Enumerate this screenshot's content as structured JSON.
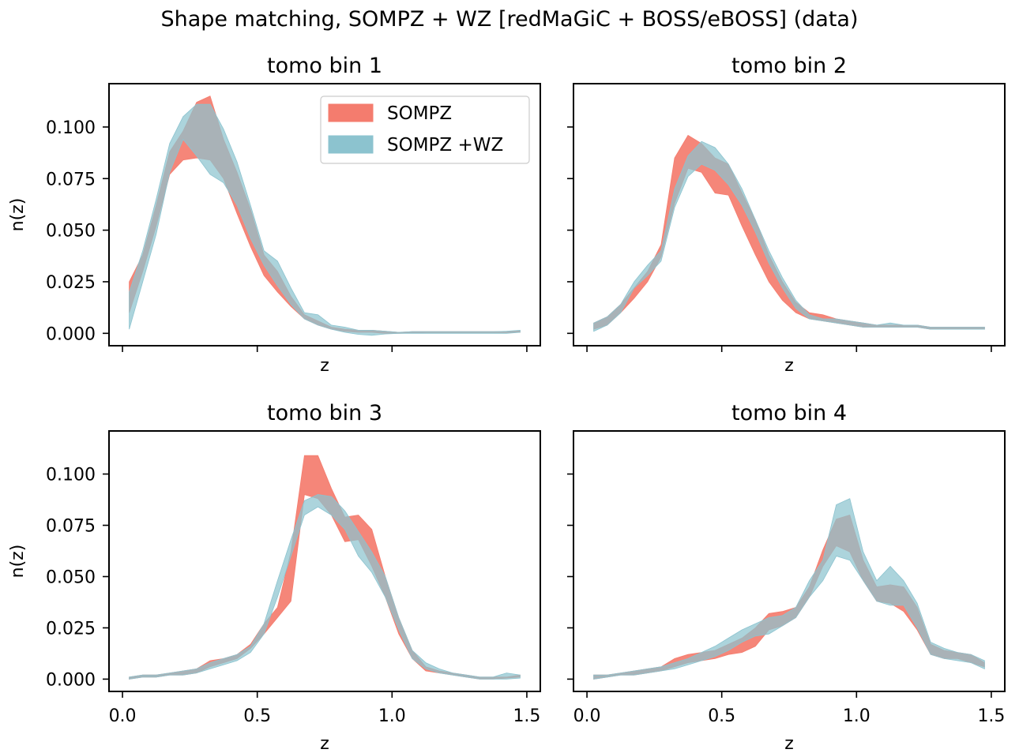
{
  "figure": {
    "suptitle": "Shape matching, SOMPZ + WZ [redMaGiC + BOSS/eBOSS] (data)"
  },
  "colors": {
    "sompz": "#f47c6e",
    "sompz_wz": "#8cc3cf",
    "overlap": "#8e989c"
  },
  "legend": {
    "placement": "top-right of tomo bin 1",
    "entries": [
      "SOMPZ",
      "SOMPZ +WZ"
    ]
  },
  "chart_data": [
    {
      "type": "area",
      "title": "tomo bin 1",
      "xlabel": "z",
      "ylabel": "n(z)",
      "xlim": [
        -0.05,
        1.55
      ],
      "ylim": [
        -0.006,
        0.121
      ],
      "xticks": [
        "0.0",
        "0.5",
        "1.0",
        "1.5"
      ],
      "yticks": [
        "0.000",
        "0.025",
        "0.050",
        "0.075",
        "0.100"
      ],
      "show_xtick_labels": false,
      "show_ytick_labels": true,
      "x": [
        0.025,
        0.075,
        0.125,
        0.175,
        0.225,
        0.275,
        0.325,
        0.375,
        0.425,
        0.475,
        0.525,
        0.575,
        0.625,
        0.675,
        0.725,
        0.775,
        0.825,
        0.875,
        0.925,
        0.975,
        1.025,
        1.075,
        1.125,
        1.175,
        1.225,
        1.275,
        1.325,
        1.375,
        1.425,
        1.475
      ],
      "series": [
        {
          "name": "SOMPZ",
          "lower": [
            0.01,
            0.03,
            0.052,
            0.077,
            0.084,
            0.085,
            0.084,
            0.075,
            0.058,
            0.042,
            0.028,
            0.02,
            0.013,
            0.007,
            0.004,
            0.002,
            0.001,
            0.0005,
            0.0005,
            0.0,
            0.0,
            0.0002,
            0.0003,
            0.0003,
            0.0003,
            0.0003,
            0.0003,
            0.0003,
            0.0003,
            0.0005
          ],
          "upper": [
            0.025,
            0.038,
            0.062,
            0.088,
            0.098,
            0.112,
            0.115,
            0.094,
            0.078,
            0.06,
            0.038,
            0.03,
            0.018,
            0.009,
            0.006,
            0.003,
            0.002,
            0.0015,
            0.0015,
            0.001,
            0.0005,
            0.0008,
            0.0008,
            0.0008,
            0.0008,
            0.0008,
            0.0008,
            0.0008,
            0.0008,
            0.0012
          ]
        },
        {
          "name": "SOMPZ +WZ",
          "lower": [
            0.002,
            0.025,
            0.048,
            0.078,
            0.094,
            0.086,
            0.077,
            0.073,
            0.062,
            0.046,
            0.033,
            0.023,
            0.014,
            0.007,
            0.004,
            0.002,
            0.0005,
            -0.0005,
            -0.001,
            -0.0003,
            0.0,
            0.0,
            0.0,
            0.0,
            0.0,
            0.0,
            0.0,
            0.0,
            0.0,
            0.0005
          ],
          "upper": [
            0.02,
            0.04,
            0.065,
            0.092,
            0.105,
            0.111,
            0.111,
            0.099,
            0.083,
            0.062,
            0.04,
            0.035,
            0.022,
            0.01,
            0.009,
            0.004,
            0.003,
            0.0015,
            0.0015,
            0.001,
            0.0005,
            0.0008,
            0.0008,
            0.0008,
            0.0008,
            0.0008,
            0.0008,
            0.0008,
            0.001,
            0.0015
          ]
        }
      ]
    },
    {
      "type": "area",
      "title": "tomo bin 2",
      "xlabel": "z",
      "ylabel": "",
      "xlim": [
        -0.05,
        1.55
      ],
      "ylim": [
        -0.006,
        0.121
      ],
      "xticks": [
        "0.0",
        "0.5",
        "1.0",
        "1.5"
      ],
      "yticks": [
        "0.000",
        "0.025",
        "0.050",
        "0.075",
        "0.100"
      ],
      "show_xtick_labels": false,
      "show_ytick_labels": false,
      "x": [
        0.025,
        0.075,
        0.125,
        0.175,
        0.225,
        0.275,
        0.325,
        0.375,
        0.425,
        0.475,
        0.525,
        0.575,
        0.625,
        0.675,
        0.725,
        0.775,
        0.825,
        0.875,
        0.925,
        0.975,
        1.025,
        1.075,
        1.125,
        1.175,
        1.225,
        1.275,
        1.325,
        1.375,
        1.425,
        1.475
      ],
      "series": [
        {
          "name": "SOMPZ",
          "lower": [
            0.002,
            0.004,
            0.01,
            0.017,
            0.025,
            0.037,
            0.063,
            0.08,
            0.078,
            0.068,
            0.067,
            0.052,
            0.038,
            0.025,
            0.016,
            0.01,
            0.007,
            0.006,
            0.005,
            0.004,
            0.003,
            0.003,
            0.003,
            0.003,
            0.003,
            0.002,
            0.002,
            0.002,
            0.002,
            0.002
          ],
          "upper": [
            0.005,
            0.008,
            0.014,
            0.022,
            0.03,
            0.043,
            0.085,
            0.096,
            0.092,
            0.085,
            0.082,
            0.068,
            0.055,
            0.038,
            0.025,
            0.015,
            0.01,
            0.009,
            0.007,
            0.006,
            0.005,
            0.004,
            0.004,
            0.004,
            0.004,
            0.003,
            0.003,
            0.003,
            0.003,
            0.003
          ]
        },
        {
          "name": "SOMPZ +WZ",
          "lower": [
            0.001,
            0.004,
            0.01,
            0.022,
            0.028,
            0.035,
            0.061,
            0.076,
            0.082,
            0.079,
            0.072,
            0.062,
            0.049,
            0.034,
            0.022,
            0.012,
            0.007,
            0.006,
            0.005,
            0.004,
            0.003,
            0.003,
            0.003,
            0.003,
            0.003,
            0.002,
            0.002,
            0.002,
            0.002,
            0.002
          ],
          "upper": [
            0.005,
            0.008,
            0.014,
            0.025,
            0.033,
            0.04,
            0.07,
            0.086,
            0.093,
            0.09,
            0.082,
            0.07,
            0.055,
            0.04,
            0.027,
            0.016,
            0.009,
            0.007,
            0.007,
            0.006,
            0.005,
            0.004,
            0.005,
            0.004,
            0.004,
            0.003,
            0.003,
            0.003,
            0.003,
            0.003
          ]
        }
      ]
    },
    {
      "type": "area",
      "title": "tomo bin 3",
      "xlabel": "z",
      "ylabel": "n(z)",
      "xlim": [
        -0.05,
        1.55
      ],
      "ylim": [
        -0.006,
        0.121
      ],
      "xticks": [
        "0.0",
        "0.5",
        "1.0",
        "1.5"
      ],
      "yticks": [
        "0.000",
        "0.025",
        "0.050",
        "0.075",
        "0.100"
      ],
      "show_xtick_labels": true,
      "show_ytick_labels": true,
      "x": [
        0.025,
        0.075,
        0.125,
        0.175,
        0.225,
        0.275,
        0.325,
        0.375,
        0.425,
        0.475,
        0.525,
        0.575,
        0.625,
        0.675,
        0.725,
        0.775,
        0.825,
        0.875,
        0.925,
        0.975,
        1.025,
        1.075,
        1.125,
        1.175,
        1.225,
        1.275,
        1.325,
        1.375,
        1.425,
        1.475
      ],
      "series": [
        {
          "name": "SOMPZ",
          "lower": [
            0.0,
            0.001,
            0.001,
            0.002,
            0.002,
            0.003,
            0.006,
            0.008,
            0.01,
            0.015,
            0.022,
            0.03,
            0.038,
            0.09,
            0.088,
            0.08,
            0.067,
            0.068,
            0.055,
            0.04,
            0.022,
            0.01,
            0.004,
            0.003,
            0.002,
            0.001,
            0.0,
            0.0,
            0.0005,
            0.001
          ],
          "upper": [
            0.001,
            0.002,
            0.002,
            0.003,
            0.004,
            0.005,
            0.009,
            0.01,
            0.012,
            0.017,
            0.027,
            0.035,
            0.062,
            0.109,
            0.109,
            0.093,
            0.079,
            0.08,
            0.073,
            0.05,
            0.03,
            0.014,
            0.006,
            0.004,
            0.003,
            0.002,
            0.001,
            0.001,
            0.001,
            0.002
          ]
        },
        {
          "name": "SOMPZ +WZ",
          "lower": [
            0.0,
            0.001,
            0.001,
            0.002,
            0.002,
            0.003,
            0.005,
            0.007,
            0.009,
            0.013,
            0.022,
            0.04,
            0.06,
            0.08,
            0.084,
            0.08,
            0.073,
            0.06,
            0.052,
            0.04,
            0.024,
            0.01,
            0.005,
            0.003,
            0.002,
            0.001,
            0.0,
            0.0,
            0.0,
            0.0005
          ],
          "upper": [
            0.001,
            0.002,
            0.002,
            0.003,
            0.004,
            0.005,
            0.008,
            0.01,
            0.012,
            0.016,
            0.027,
            0.048,
            0.068,
            0.087,
            0.09,
            0.089,
            0.082,
            0.072,
            0.062,
            0.05,
            0.03,
            0.014,
            0.008,
            0.005,
            0.003,
            0.002,
            0.001,
            0.001,
            0.003,
            0.002
          ]
        }
      ]
    },
    {
      "type": "area",
      "title": "tomo bin 4",
      "xlabel": "z",
      "ylabel": "",
      "xlim": [
        -0.05,
        1.55
      ],
      "ylim": [
        -0.006,
        0.121
      ],
      "xticks": [
        "0.0",
        "0.5",
        "1.0",
        "1.5"
      ],
      "yticks": [
        "0.000",
        "0.025",
        "0.050",
        "0.075",
        "0.100"
      ],
      "show_xtick_labels": true,
      "show_ytick_labels": false,
      "x": [
        0.025,
        0.075,
        0.125,
        0.175,
        0.225,
        0.275,
        0.325,
        0.375,
        0.425,
        0.475,
        0.525,
        0.575,
        0.625,
        0.675,
        0.725,
        0.775,
        0.825,
        0.875,
        0.925,
        0.975,
        1.025,
        1.075,
        1.125,
        1.175,
        1.225,
        1.275,
        1.325,
        1.375,
        1.425,
        1.475
      ],
      "series": [
        {
          "name": "SOMPZ",
          "lower": [
            0.0,
            0.001,
            0.002,
            0.002,
            0.003,
            0.004,
            0.006,
            0.008,
            0.009,
            0.01,
            0.012,
            0.013,
            0.016,
            0.024,
            0.026,
            0.03,
            0.04,
            0.055,
            0.065,
            0.062,
            0.048,
            0.038,
            0.037,
            0.033,
            0.024,
            0.012,
            0.01,
            0.01,
            0.008,
            0.006
          ],
          "upper": [
            0.002,
            0.002,
            0.003,
            0.004,
            0.005,
            0.006,
            0.01,
            0.012,
            0.013,
            0.014,
            0.017,
            0.02,
            0.025,
            0.032,
            0.033,
            0.035,
            0.045,
            0.063,
            0.078,
            0.08,
            0.058,
            0.045,
            0.046,
            0.045,
            0.035,
            0.017,
            0.014,
            0.013,
            0.012,
            0.008
          ]
        },
        {
          "name": "SOMPZ +WZ",
          "lower": [
            0.0,
            0.001,
            0.002,
            0.002,
            0.003,
            0.004,
            0.005,
            0.007,
            0.009,
            0.011,
            0.014,
            0.018,
            0.021,
            0.022,
            0.026,
            0.03,
            0.04,
            0.048,
            0.06,
            0.058,
            0.048,
            0.038,
            0.036,
            0.036,
            0.025,
            0.012,
            0.01,
            0.009,
            0.008,
            0.005
          ],
          "upper": [
            0.002,
            0.002,
            0.003,
            0.004,
            0.005,
            0.006,
            0.008,
            0.01,
            0.013,
            0.016,
            0.02,
            0.024,
            0.027,
            0.03,
            0.031,
            0.035,
            0.048,
            0.058,
            0.085,
            0.088,
            0.062,
            0.048,
            0.055,
            0.048,
            0.037,
            0.018,
            0.015,
            0.013,
            0.012,
            0.009
          ]
        }
      ]
    }
  ]
}
